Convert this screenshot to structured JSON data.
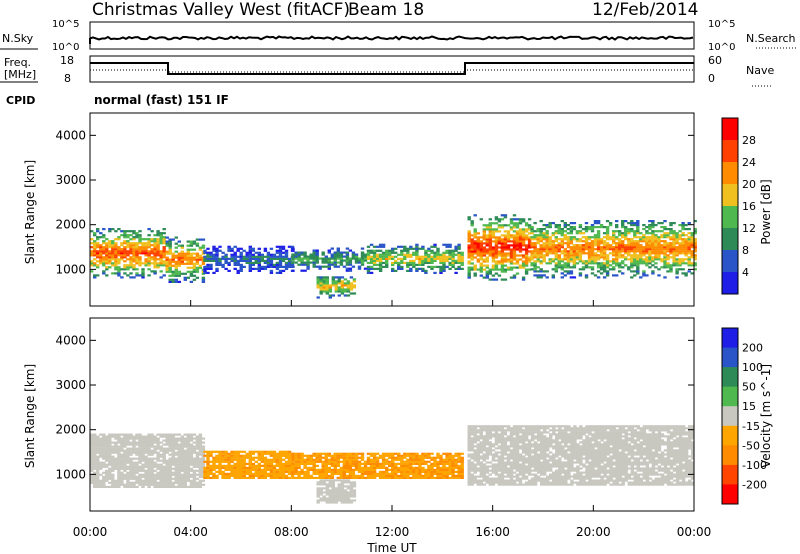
{
  "header": {
    "station": "Christmas Valley West (fitACF)",
    "beam": "Beam 18",
    "date": "12/Feb/2014"
  },
  "noise_panel": {
    "left_label": "N.Sky",
    "right_label": "N.Search",
    "left_ticks": [
      "10^5",
      "10^0"
    ],
    "right_ticks": [
      "10^5",
      "10^0"
    ]
  },
  "freq_panel": {
    "left_label_1": "Freq.",
    "left_label_2": "[MHz]",
    "right_label": "Nave",
    "left_ticks": [
      "18",
      "8"
    ],
    "right_ticks": [
      "60",
      "0"
    ]
  },
  "cpid": {
    "label": "CPID",
    "value": "normal (fast) 151 IF"
  },
  "colors": {
    "power_scale": [
      "#1e1ee6",
      "#2a55c8",
      "#2e8b57",
      "#4fb84f",
      "#f0c020",
      "#ff8c00",
      "#ff4000",
      "#ff0000"
    ],
    "velocity_scale": [
      "#1e1ee6",
      "#2a55c8",
      "#2e8b57",
      "#4fb84f",
      "#c8c8c0",
      "#ffa500",
      "#ff8c00",
      "#ff4500",
      "#ff0000"
    ]
  },
  "chart_data": [
    {
      "type": "heatmap",
      "title": "",
      "xlabel": "Time UT",
      "ylabel": "Slant Range [km]",
      "x_ticks": [
        "00:00",
        "04:00",
        "08:00",
        "12:00",
        "16:00",
        "20:00",
        "00:00"
      ],
      "y_ticks": [
        "4000",
        "3000",
        "2000",
        "1000"
      ],
      "xlim": [
        0,
        24
      ],
      "ylim": [
        180,
        4500
      ],
      "colorbar_label": "Power [dB]",
      "colorbar_ticks": [
        "28",
        "24",
        "20",
        "16",
        "12",
        "8",
        "4"
      ],
      "colorbar_range": [
        0,
        32
      ],
      "bands": [
        {
          "t0": 0.0,
          "t1": 2.9,
          "r0": 800,
          "r1": 1900,
          "peak": 26
        },
        {
          "t0": 3.0,
          "t1": 4.5,
          "r0": 700,
          "r1": 1700,
          "peak": 24
        },
        {
          "t0": 4.5,
          "t1": 8.0,
          "r0": 900,
          "r1": 1500,
          "peak": 8
        },
        {
          "t0": 8.0,
          "t1": 11.0,
          "r0": 950,
          "r1": 1450,
          "peak": 12
        },
        {
          "t0": 9.0,
          "t1": 10.5,
          "r0": 350,
          "r1": 850,
          "peak": 20
        },
        {
          "t0": 11.0,
          "t1": 14.8,
          "r0": 900,
          "r1": 1550,
          "peak": 18
        },
        {
          "t0": 15.0,
          "t1": 17.5,
          "r0": 750,
          "r1": 2200,
          "peak": 28
        },
        {
          "t0": 17.5,
          "t1": 24.0,
          "r0": 800,
          "r1": 2100,
          "peak": 24
        }
      ]
    },
    {
      "type": "heatmap",
      "title": "",
      "xlabel": "Time UT",
      "ylabel": "Slant Range [km]",
      "x_ticks": [
        "00:00",
        "04:00",
        "08:00",
        "12:00",
        "16:00",
        "20:00",
        "00:00"
      ],
      "y_ticks": [
        "4000",
        "3000",
        "2000",
        "1000"
      ],
      "xlim": [
        0,
        24
      ],
      "ylim": [
        180,
        4500
      ],
      "colorbar_label": "Velocity [m s^-1]",
      "colorbar_ticks": [
        "200",
        "100",
        "50",
        "15",
        "-15",
        "-50",
        "-100",
        "-200"
      ],
      "colorbar_range": [
        -250,
        250
      ],
      "bands": [
        {
          "t0": 0.0,
          "t1": 4.5,
          "r0": 700,
          "r1": 1900,
          "vel": 0
        },
        {
          "t0": 4.5,
          "t1": 8.0,
          "r0": 900,
          "r1": 1500,
          "vel": -40
        },
        {
          "t0": 8.0,
          "t1": 14.8,
          "r0": 900,
          "r1": 1450,
          "vel": -45
        },
        {
          "t0": 9.0,
          "t1": 10.5,
          "r0": 350,
          "r1": 850,
          "vel": 0
        },
        {
          "t0": 15.0,
          "t1": 24.0,
          "r0": 750,
          "r1": 2100,
          "vel": 0
        }
      ]
    }
  ]
}
